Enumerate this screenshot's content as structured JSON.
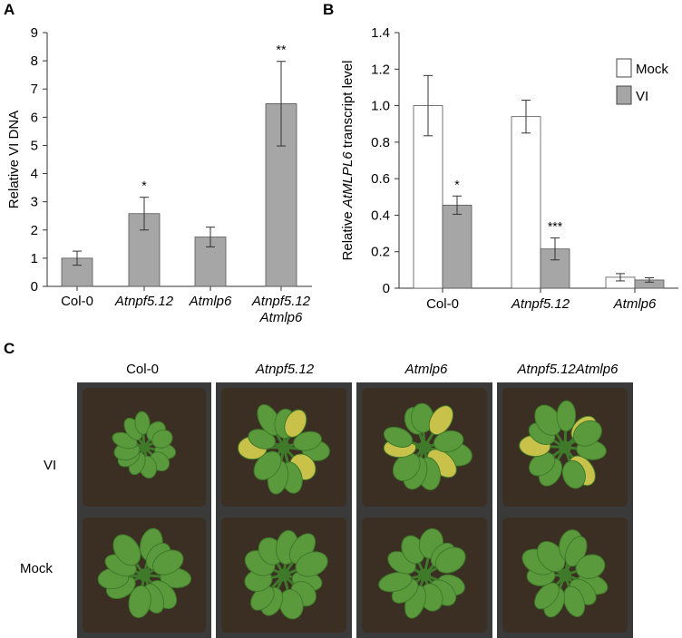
{
  "panels": {
    "a": {
      "letter": "A"
    },
    "b": {
      "letter": "B"
    },
    "c": {
      "letter": "C"
    }
  },
  "chart_data": [
    {
      "panel": "A",
      "type": "bar",
      "ylabel": "Relative VI DNA",
      "ylim": [
        0,
        9
      ],
      "yticks": [
        "0",
        "1",
        "2",
        "3",
        "4",
        "5",
        "6",
        "7",
        "8",
        "9"
      ],
      "categories": [
        "Col-0",
        "Atnpf5.12",
        "Atmlp6",
        "Atnpf5.12\nAtmlp6"
      ],
      "values": [
        1.0,
        2.58,
        1.75,
        6.48
      ],
      "errors": [
        0.25,
        0.58,
        0.35,
        1.5
      ],
      "significance": [
        "",
        "*",
        "",
        "**"
      ],
      "bar_color": "#a6a6a6",
      "grid": false
    },
    {
      "panel": "B",
      "type": "bar",
      "ylabel_prefix": "Relative ",
      "ylabel_italic": "AtMLPL6",
      "ylabel_suffix": " transcript level",
      "ylim": [
        0,
        1.4
      ],
      "yticks": [
        "0",
        "0.2",
        "0.4",
        "0.6",
        "0.8",
        "1.0",
        "1.2",
        "1.4"
      ],
      "categories": [
        "Col-0",
        "Atnpf5.12",
        "Atmlp6"
      ],
      "series": [
        {
          "name": "Mock",
          "values": [
            1.0,
            0.94,
            0.06
          ],
          "errors": [
            0.165,
            0.09,
            0.02
          ],
          "color": "#ffffff",
          "significance": [
            "",
            "",
            ""
          ]
        },
        {
          "name": "VI",
          "values": [
            0.455,
            0.215,
            0.045
          ],
          "errors": [
            0.05,
            0.06,
            0.012
          ],
          "color": "#a6a6a6",
          "significance": [
            "*",
            "***",
            ""
          ]
        }
      ],
      "legend": "top-right",
      "grid": false
    }
  ],
  "photo_panel": {
    "columns": [
      "Col-0",
      "Atnpf5.12",
      "Atmlp6",
      "Atnpf5.12Atmlp6"
    ],
    "rows": [
      "VI",
      "Mock"
    ],
    "colors": {
      "frame": "#3a3a3a",
      "soil": "#3b2e22",
      "leaf": "#5a9a3c",
      "leaf_dark": "#3f7a2a",
      "yellow": "#c9c24a"
    }
  }
}
